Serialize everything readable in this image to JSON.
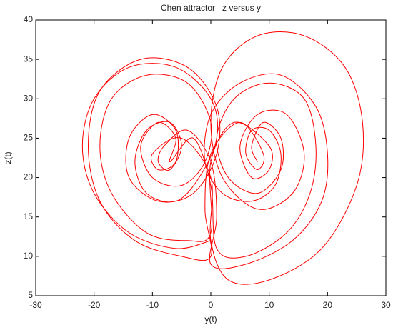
{
  "chart_data": {
    "type": "line",
    "title": "Chen attractor   z versus y",
    "xlabel": "y(t)",
    "ylabel": "z(t)",
    "color": "#ff0000",
    "x": [
      0,
      -6,
      -14,
      -20,
      -22,
      -20,
      -14,
      -6,
      0,
      1,
      -2,
      -6,
      -11,
      -13,
      -11,
      -7,
      -5,
      -7,
      -9,
      -8,
      -4,
      0,
      1,
      0,
      6,
      14,
      19,
      20,
      18,
      12,
      5,
      0,
      -1,
      2,
      7,
      11,
      12,
      10,
      7,
      6,
      8,
      9,
      5,
      0,
      -1,
      0,
      -5,
      -13,
      -19,
      -21,
      -19,
      -12,
      -4,
      1,
      1,
      -3,
      -9,
      -14,
      -14,
      -10,
      -6,
      -6,
      -9,
      -10,
      -5,
      0,
      0,
      3,
      10,
      19,
      25,
      26,
      23,
      16,
      8,
      2,
      0,
      2,
      8,
      14,
      16,
      13,
      8,
      5,
      7,
      10,
      10,
      4,
      0,
      0,
      -4,
      -11,
      -17,
      -19,
      -17,
      -11,
      -4,
      0,
      -1,
      -5,
      -10,
      -12,
      -9,
      -6,
      -7,
      -3,
      0,
      1,
      6,
      13,
      17,
      18,
      16,
      10,
      4,
      1,
      3,
      8,
      12,
      12,
      9,
      7,
      8
    ],
    "values": [
      12,
      11,
      13,
      18,
      24,
      30,
      34,
      34,
      30,
      25,
      20,
      17,
      18,
      22,
      26,
      27,
      24,
      21,
      22,
      24,
      26,
      22,
      15,
      9,
      9,
      12,
      17,
      23,
      29,
      33,
      32,
      28,
      22,
      18,
      17,
      19,
      23,
      26,
      26,
      23,
      21,
      23,
      27,
      23,
      16,
      10,
      10,
      12,
      17,
      24,
      31,
      35,
      34,
      29,
      23,
      18,
      17,
      20,
      25,
      28,
      26,
      22,
      21,
      23,
      25,
      20,
      12,
      7,
      7,
      11,
      19,
      27,
      34,
      38,
      38,
      34,
      27,
      20,
      16,
      18,
      23,
      28,
      28,
      24,
      20,
      21,
      24,
      27,
      22,
      13,
      12,
      13,
      18,
      24,
      30,
      33,
      32,
      27,
      22,
      19,
      20,
      24,
      27,
      25,
      22,
      25,
      19,
      11,
      10,
      13,
      18,
      24,
      30,
      32,
      30,
      25,
      20,
      18,
      21,
      25,
      27,
      24,
      22
    ],
    "xlim": [
      -30,
      30
    ],
    "xticks": [
      -30,
      -20,
      -10,
      0,
      10,
      20,
      30
    ],
    "ylim": [
      5,
      40
    ],
    "yticks": [
      5,
      10,
      15,
      20,
      25,
      30,
      35,
      40
    ]
  }
}
